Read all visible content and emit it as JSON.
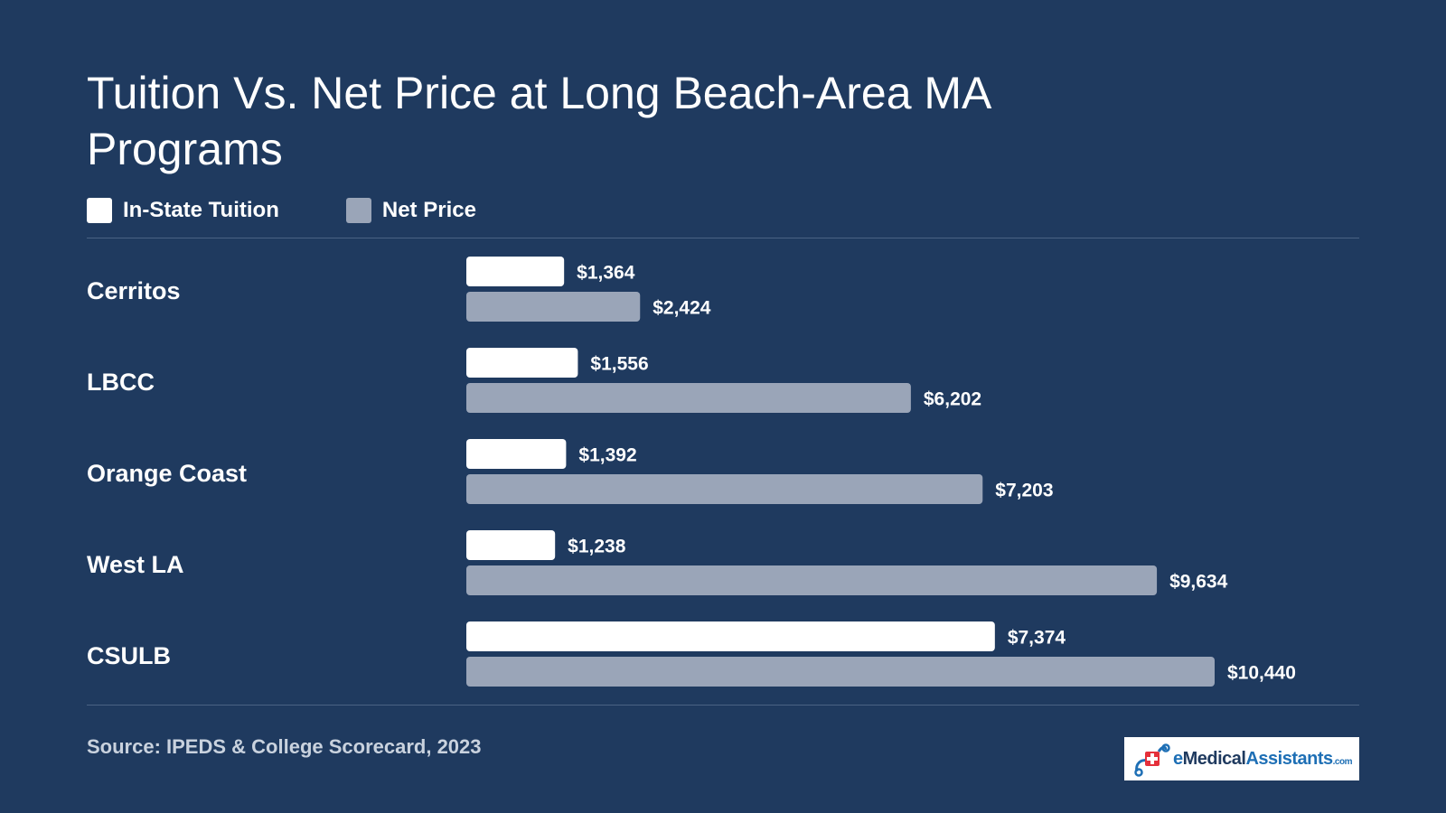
{
  "chart_data": {
    "type": "bar",
    "orientation": "horizontal",
    "title": "Tuition Vs. Net Price at Long Beach-Area MA Programs",
    "categories": [
      "Cerritos",
      "LBCC",
      "Orange Coast",
      "West LA",
      "CSULB"
    ],
    "series": [
      {
        "name": "In-State Tuition",
        "color": "#ffffff",
        "values": [
          1364,
          1556,
          1392,
          1238,
          7374
        ],
        "labels": [
          "$1,364",
          "$1,556",
          "$1,392",
          "$1,238",
          "$7,374"
        ]
      },
      {
        "name": "Net Price",
        "color": "#9aa5b8",
        "values": [
          2424,
          6202,
          7203,
          9634,
          10440
        ],
        "labels": [
          "$2,424",
          "$6,202",
          "$7,203",
          "$9,634",
          "$10,440"
        ]
      }
    ],
    "xlim": [
      0,
      10440
    ],
    "grid": false,
    "legend_position": "top-left"
  },
  "footer": {
    "source": "Source: IPEDS & College Scorecard, 2023"
  },
  "logo": {
    "text_prefix": "e",
    "text_main": "Medical",
    "text_accent": "Assistants",
    "text_suffix": ".com",
    "icon": "medical-cross-icon"
  },
  "colors": {
    "background": "#1f3a5f",
    "tuition": "#ffffff",
    "net_price": "#9aa5b8"
  }
}
